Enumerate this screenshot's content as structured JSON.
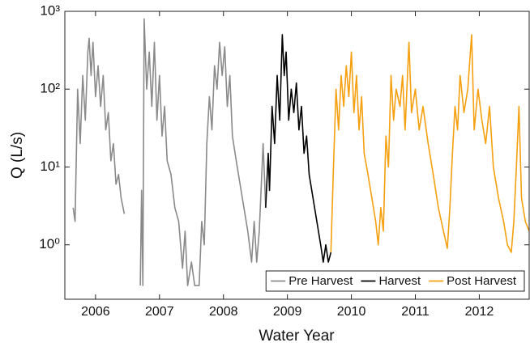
{
  "chart_data": {
    "type": "line",
    "x_label": "Water Year",
    "y_label": "Q (L/s)",
    "log_y": true,
    "grid": false,
    "legend": "lower right",
    "xlim": [
      2005.52,
      2012.78
    ],
    "ylim": [
      0.2,
      1000
    ],
    "xticks": [
      2006,
      2007,
      2008,
      2009,
      2010,
      2011,
      2012
    ],
    "yticks": [
      {
        "value": 1,
        "label": "10⁰"
      },
      {
        "value": 10,
        "label": "10¹"
      },
      {
        "value": 100,
        "label": "10²"
      },
      {
        "value": 1000,
        "label": "10³"
      }
    ],
    "series": [
      {
        "name": "Pre Harvest",
        "color": "#8a8a8a",
        "x": [
          2005.65,
          2005.68,
          2005.72,
          2005.76,
          2005.8,
          2005.84,
          2005.88,
          2005.9,
          2005.93,
          2005.96,
          2006.0,
          2006.04,
          2006.08,
          2006.12,
          2006.16,
          2006.2,
          2006.24,
          2006.28,
          2006.32,
          2006.36,
          2006.4,
          2006.45,
          2006.6,
          2006.7,
          2006.72,
          2006.74,
          2006.76,
          2006.8,
          2006.84,
          2006.88,
          2006.92,
          2006.96,
          2007.0,
          2007.04,
          2007.08,
          2007.12,
          2007.18,
          2007.24,
          2007.3,
          2007.36,
          2007.4,
          2007.44,
          2007.5,
          2007.55,
          2007.62,
          2007.66,
          2007.7,
          2007.74,
          2007.78,
          2007.82,
          2007.86,
          2007.9,
          2007.94,
          2007.98,
          2008.02,
          2008.06,
          2008.1,
          2008.14,
          2008.2,
          2008.26,
          2008.32,
          2008.38,
          2008.44,
          2008.48,
          2008.52,
          2008.56,
          2008.62,
          2008.66
        ],
        "values": [
          3,
          2,
          100,
          20,
          150,
          40,
          300,
          450,
          150,
          400,
          80,
          200,
          60,
          150,
          30,
          50,
          12,
          20,
          6,
          8,
          4,
          2.5,
          null,
          0.3,
          5,
          0.3,
          800,
          100,
          300,
          60,
          400,
          40,
          150,
          25,
          60,
          12,
          8,
          3,
          2,
          0.5,
          1.5,
          0.3,
          0.6,
          0.3,
          0.3,
          2,
          1,
          20,
          80,
          30,
          200,
          100,
          400,
          150,
          350,
          60,
          150,
          25,
          12,
          6,
          3,
          1.5,
          0.6,
          2,
          0.6,
          1.5,
          20,
          3
        ]
      },
      {
        "name": "Harvest",
        "color": "#000000",
        "x": [
          2008.66,
          2008.7,
          2008.72,
          2008.76,
          2008.8,
          2008.84,
          2008.88,
          2008.92,
          2008.95,
          2008.98,
          2009.02,
          2009.06,
          2009.1,
          2009.14,
          2009.18,
          2009.22,
          2009.26,
          2009.3,
          2009.34,
          2009.4,
          2009.46,
          2009.52,
          2009.56,
          2009.6,
          2009.64,
          2009.68
        ],
        "values": [
          3,
          15,
          5,
          60,
          20,
          150,
          40,
          500,
          150,
          300,
          40,
          100,
          50,
          120,
          30,
          60,
          15,
          25,
          8,
          4,
          2,
          1,
          0.6,
          1,
          0.6,
          0.8
        ]
      },
      {
        "name": "Post Harvest",
        "color": "#f5a00f",
        "x": [
          2009.68,
          2009.72,
          2009.76,
          2009.8,
          2009.84,
          2009.88,
          2009.92,
          2009.96,
          2010.0,
          2010.04,
          2010.08,
          2010.12,
          2010.16,
          2010.2,
          2010.26,
          2010.32,
          2010.38,
          2010.42,
          2010.46,
          2010.5,
          2010.54,
          2010.58,
          2010.62,
          2010.66,
          2010.7,
          2010.76,
          2010.8,
          2010.84,
          2010.9,
          2010.94,
          2011.0,
          2011.06,
          2011.12,
          2011.2,
          2011.28,
          2011.36,
          2011.44,
          2011.5,
          2011.54,
          2011.58,
          2011.62,
          2011.66,
          2011.7,
          2011.76,
          2011.82,
          2011.88,
          2011.92,
          2011.98,
          2012.04,
          2012.1,
          2012.16,
          2012.22,
          2012.3,
          2012.38,
          2012.44,
          2012.5,
          2012.54,
          2012.58,
          2012.62,
          2012.66,
          2012.72,
          2012.78
        ],
        "values": [
          0.8,
          10,
          100,
          30,
          150,
          60,
          200,
          80,
          300,
          50,
          150,
          30,
          80,
          15,
          8,
          4,
          2,
          1,
          3,
          1.5,
          25,
          10,
          150,
          40,
          100,
          60,
          150,
          30,
          400,
          50,
          100,
          30,
          60,
          20,
          8,
          3,
          1.5,
          0.9,
          3,
          15,
          60,
          30,
          150,
          50,
          100,
          500,
          30,
          100,
          40,
          20,
          60,
          10,
          4,
          2,
          1,
          0.8,
          2,
          10,
          60,
          4,
          2,
          1.5
        ]
      }
    ]
  }
}
